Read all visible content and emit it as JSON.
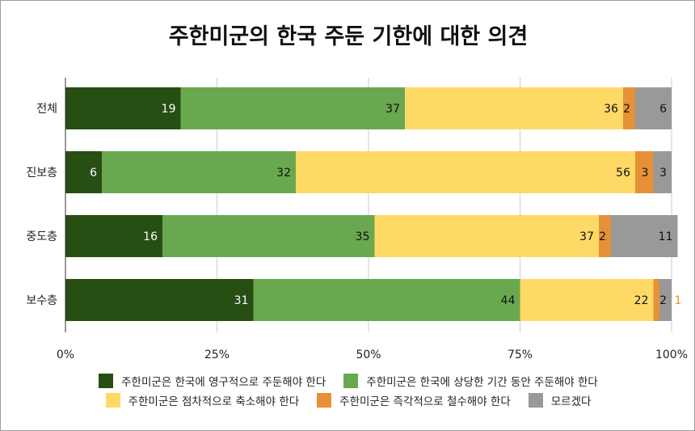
{
  "chart_data": {
    "type": "bar",
    "orientation": "horizontal",
    "stacked": true,
    "title": "주한미군의 한국 주둔 기한에 대한 의견",
    "categories": [
      "전체",
      "진보층",
      "중도층",
      "보수층"
    ],
    "series": [
      {
        "name": "주한미군은 한국에 영구적으로 주둔해야 한다",
        "values": [
          19,
          6,
          16,
          31
        ],
        "color": "#274e13",
        "label_color": "#ffffff"
      },
      {
        "name": "주한미군은 한국에 상당한 기간 동안 주둔해야 한다",
        "values": [
          37,
          32,
          35,
          44
        ],
        "color": "#6aa84f",
        "label_color": "#111111"
      },
      {
        "name": "주한미군은 점차적으로 축소해야 한다",
        "values": [
          36,
          56,
          37,
          22
        ],
        "color": "#ffd966",
        "label_color": "#111111"
      },
      {
        "name": "주한미군은 즉각적으로 철수해야 한다",
        "values": [
          2,
          3,
          2,
          1
        ],
        "color": "#e69138",
        "label_color": "#111111"
      },
      {
        "name": "모르겠다",
        "values": [
          6,
          3,
          11,
          2
        ],
        "color": "#999999",
        "label_color": "#111111"
      }
    ],
    "xlim": [
      0,
      100
    ],
    "x_ticks": [
      "0%",
      "25%",
      "50%",
      "75%",
      "100%"
    ],
    "grid": true,
    "legend_position": "bottom"
  }
}
